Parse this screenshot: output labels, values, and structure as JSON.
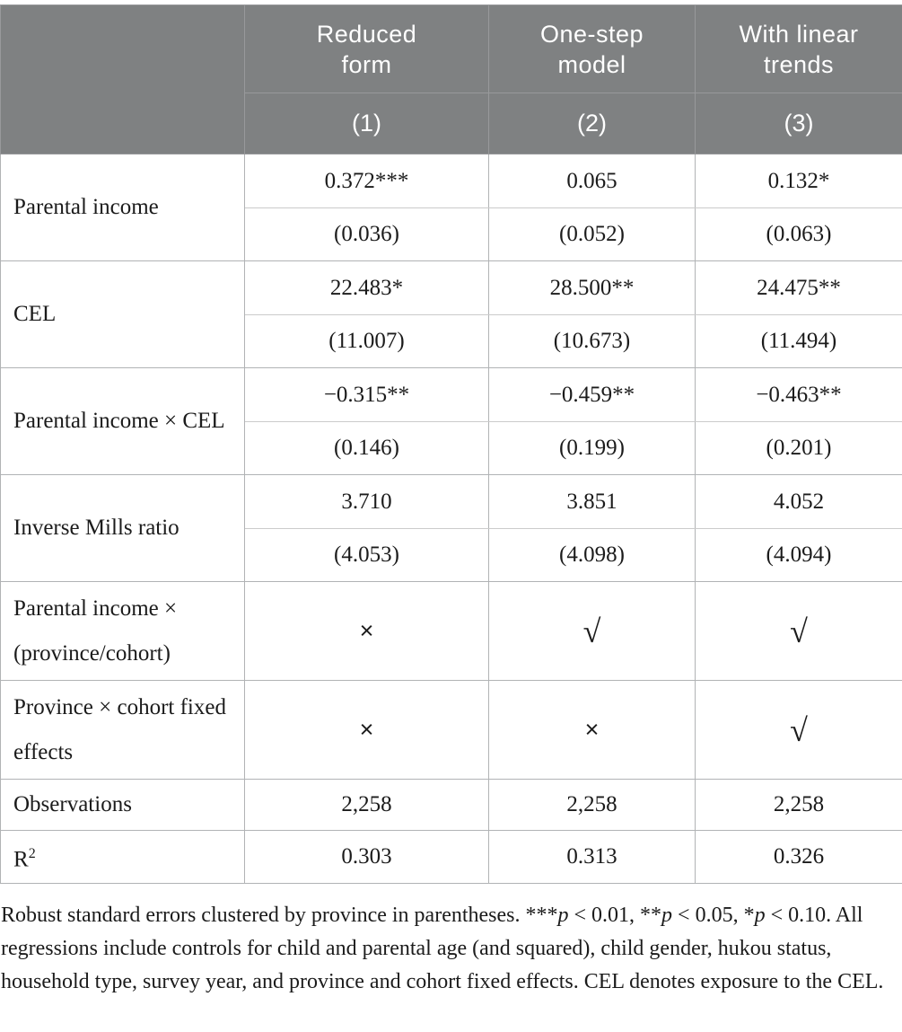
{
  "colors": {
    "header_bg": "#7f8182",
    "header_border": "#98999b",
    "border_strong": "#b1b3b5",
    "border_light": "#cbcbcb",
    "header_text": "#ffffff",
    "body_text": "#1b1b1b"
  },
  "table": {
    "columns": [
      {
        "title": "Reduced\nform",
        "number": "(1)"
      },
      {
        "title": "One-step\nmodel",
        "number": "(2)"
      },
      {
        "title": "With linear\ntrends",
        "number": "(3)"
      }
    ],
    "coefficient_rows": [
      {
        "label": "Parental income",
        "coefs": [
          "0.372***",
          "0.065",
          "0.132*"
        ],
        "ses": [
          "(0.036)",
          "(0.052)",
          "(0.063)"
        ]
      },
      {
        "label": "CEL",
        "coefs": [
          "22.483*",
          "28.500**",
          "24.475**"
        ],
        "ses": [
          "(11.007)",
          "(10.673)",
          "(11.494)"
        ]
      },
      {
        "label": "Parental income × CEL",
        "coefs": [
          "−0.315**",
          "−0.459**",
          "−0.463**"
        ],
        "ses": [
          "(0.146)",
          "(0.199)",
          "(0.201)"
        ]
      },
      {
        "label": "Inverse Mills ratio",
        "coefs": [
          "3.710",
          "3.851",
          "4.052"
        ],
        "ses": [
          "(4.053)",
          "(4.098)",
          "(4.094)"
        ]
      }
    ],
    "indicator_rows": [
      {
        "label": "Parental income × (province/cohort)",
        "values": [
          "×",
          "√",
          "√"
        ]
      },
      {
        "label": "Province × cohort fixed effects",
        "values": [
          "×",
          "×",
          "√"
        ]
      }
    ],
    "stat_rows": [
      {
        "label": "Observations",
        "label_sup": "",
        "values": [
          "2,258",
          "2,258",
          "2,258"
        ]
      },
      {
        "label": "R",
        "label_sup": "2",
        "values": [
          "0.303",
          "0.313",
          "0.326"
        ]
      }
    ]
  },
  "footnote": {
    "segments": [
      {
        "text": "Robust standard errors clustered by province in parentheses. ***",
        "italic": false
      },
      {
        "text": "p",
        "italic": true
      },
      {
        "text": " < 0.01, **",
        "italic": false
      },
      {
        "text": "p",
        "italic": true
      },
      {
        "text": " < 0.05, *",
        "italic": false
      },
      {
        "text": "p",
        "italic": true
      },
      {
        "text": " < 0.10. All regressions include controls for child and parental age (and squared), child gender, hukou status, household type, survey year, and province and cohort fixed effects. CEL denotes exposure to the CEL.",
        "italic": false
      }
    ]
  }
}
